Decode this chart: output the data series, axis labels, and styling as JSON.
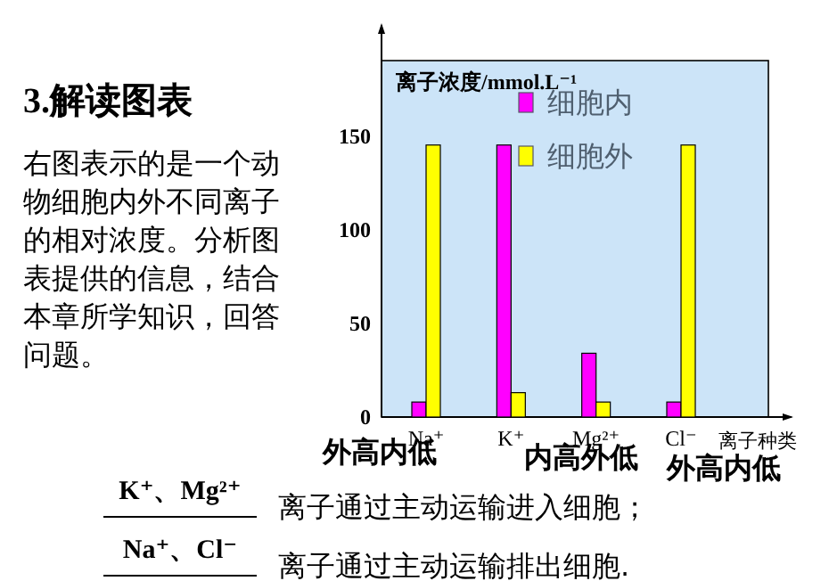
{
  "chart_data": {
    "type": "bar",
    "title": "3.解读图表",
    "ylabel": "离子浓度/mmol.L⁻¹",
    "xlabel": "离子种类",
    "categories": [
      "Na⁺",
      "K⁺",
      "Mg²⁺",
      "Cl⁻"
    ],
    "series": [
      {
        "name": "细胞内",
        "color": "#ff00ff",
        "values": [
          8,
          145,
          34,
          8
        ]
      },
      {
        "name": "细胞外",
        "color": "#ffff00",
        "values": [
          145,
          13,
          8,
          145
        ]
      }
    ],
    "ylim": [
      0,
      190
    ],
    "yticks": [
      0,
      50,
      100,
      150
    ],
    "grid": false,
    "legend": "top",
    "annotations": [
      "右图表示的是一个动物细胞内外不同离子的相对浓度。分析图表提供的信息，结合本章所学知识，回答问题。",
      "外高内低",
      "内高外低",
      "外高内低",
      "K⁺、Mg²⁺",
      "离子通过主动运输进入细胞；",
      "Na⁺、Cl⁻",
      "离子通过主动运输排出细胞."
    ]
  }
}
